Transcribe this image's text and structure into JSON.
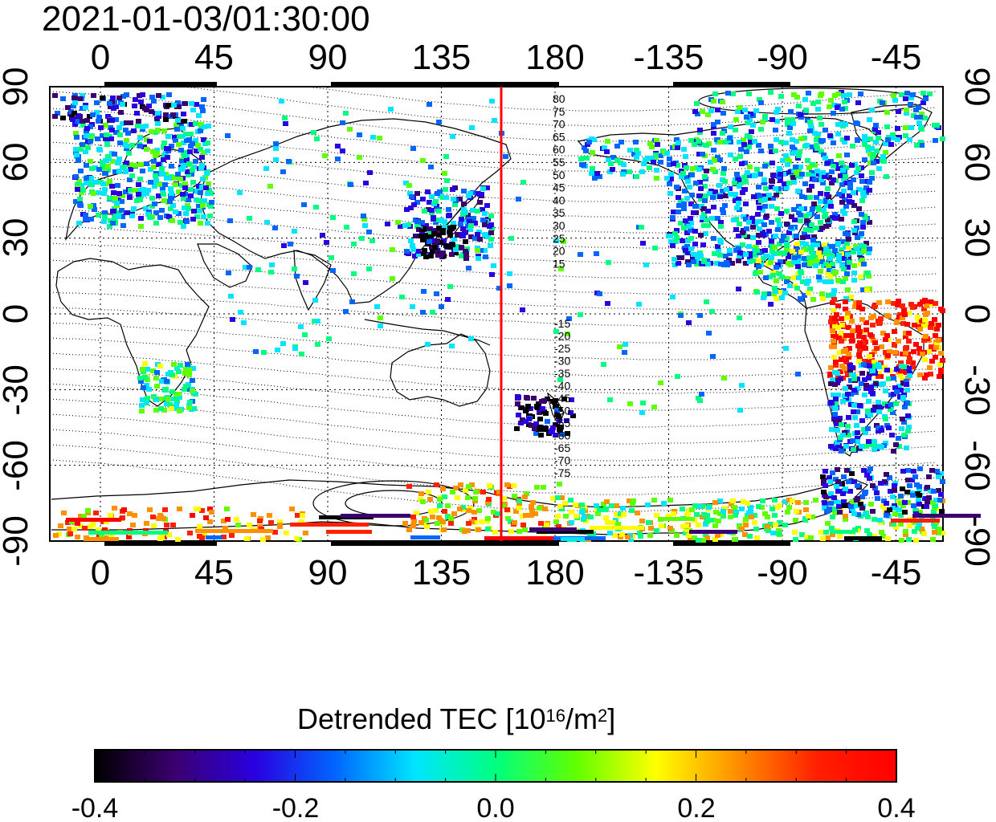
{
  "timestamp": "2021-01-03/01:30:00",
  "map": {
    "projection": "equirectangular",
    "x_ticks": [
      "0",
      "45",
      "90",
      "135",
      "180",
      "-135",
      "-90",
      "-45"
    ],
    "y_ticks_left": [
      "90",
      "60",
      "30",
      "0",
      "-30",
      "-60",
      "-90"
    ],
    "y_ticks_right": [
      "90",
      "60",
      "30",
      "0",
      "-30",
      "-60",
      "-90"
    ],
    "marker_line_longitude": 160,
    "marker_line_color": "#ff0000",
    "contour_labels_north": [
      "80",
      "75",
      "70",
      "65",
      "60",
      "55",
      "50",
      "45",
      "40",
      "35",
      "30",
      "25",
      "20",
      "15"
    ],
    "contour_labels_south": [
      "-15",
      "-20",
      "-25",
      "-30",
      "-35",
      "-40",
      "-45",
      "-50",
      "-55",
      "-60",
      "-65",
      "-70",
      "-75"
    ]
  },
  "colorbar": {
    "title_prefix": "Detrended TEC  [10",
    "title_exp1": "16",
    "title_mid": "/m",
    "title_exp2": "2",
    "title_suffix": "]",
    "tick_labels": [
      "-0.4",
      "-0.2",
      "0.0",
      "0.2",
      "0.4"
    ],
    "range": [
      -0.4,
      0.4
    ],
    "colors": [
      "#000000",
      "#3a0070",
      "#2a00e0",
      "#0066ff",
      "#00e5ff",
      "#00ff80",
      "#60ff00",
      "#ffff00",
      "#ff9000",
      "#ff2000",
      "#ff0000"
    ]
  }
}
